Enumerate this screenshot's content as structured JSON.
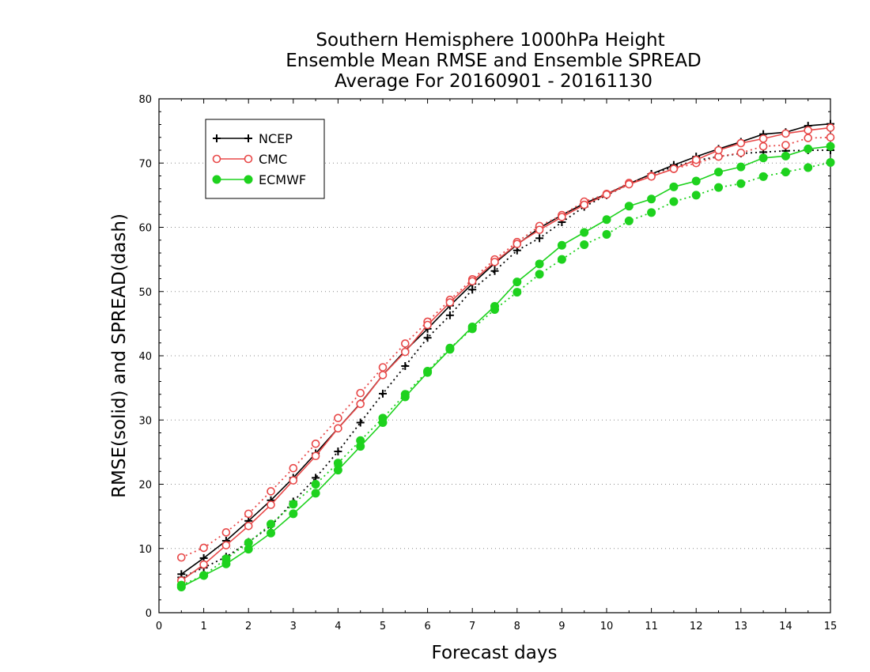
{
  "chart_data": {
    "type": "line",
    "title": [
      "Southern Hemisphere 1000hPa Height",
      "Ensemble Mean RMSE and Ensemble SPREAD",
      "Average For 20160901 - 20161130"
    ],
    "xlabel": "Forecast days",
    "ylabel": "RMSE(solid) and SPREAD(dash)",
    "xlim": [
      0,
      15
    ],
    "ylim": [
      0,
      80
    ],
    "xticks": [
      0,
      1,
      2,
      3,
      4,
      5,
      6,
      7,
      8,
      9,
      10,
      11,
      12,
      13,
      14,
      15
    ],
    "yticks": [
      0,
      10,
      20,
      30,
      40,
      50,
      60,
      70,
      80
    ],
    "grid": "horizontal dotted",
    "legend_position": "top-left",
    "x": [
      0.5,
      1,
      1.5,
      2,
      2.5,
      3,
      3.5,
      4,
      4.5,
      5,
      5.5,
      6,
      6.5,
      7,
      7.5,
      8,
      8.5,
      9,
      9.5,
      10,
      10.5,
      11,
      11.5,
      12,
      12.5,
      13,
      13.5,
      14,
      14.5,
      15
    ],
    "series": [
      {
        "name": "NCEP",
        "color": "#000000",
        "marker": "plus",
        "rmse": [
          6.0,
          8.5,
          11.2,
          14.3,
          17.5,
          21.0,
          24.8,
          28.7,
          32.6,
          37.0,
          40.8,
          44.2,
          47.8,
          51.2,
          54.4,
          57.3,
          59.9,
          61.9,
          63.7,
          65.2,
          66.8,
          68.3,
          69.7,
          71.0,
          72.2,
          73.3,
          74.5,
          74.8,
          75.8,
          76.1
        ],
        "spread": [
          5.5,
          7.0,
          8.7,
          11.0,
          13.5,
          17.3,
          21.0,
          25.1,
          29.6,
          34.1,
          38.4,
          42.8,
          46.3,
          50.3,
          53.2,
          56.4,
          58.3,
          60.8,
          63.2,
          65.0,
          66.7,
          68.3,
          69.4,
          70.4,
          71.0,
          71.5,
          71.7,
          71.9,
          72.0,
          72.0
        ]
      },
      {
        "name": "CMC",
        "color": "#e84848",
        "marker": "open-circle",
        "rmse": [
          5.0,
          7.5,
          10.5,
          13.5,
          16.8,
          20.6,
          24.4,
          28.7,
          32.5,
          37.0,
          40.6,
          44.8,
          48.3,
          51.6,
          54.6,
          57.4,
          59.6,
          61.6,
          63.5,
          65.1,
          66.7,
          67.9,
          69.1,
          70.5,
          72.0,
          73.1,
          73.8,
          74.6,
          75.1,
          75.5
        ],
        "spread": [
          8.6,
          10.1,
          12.5,
          15.4,
          18.9,
          22.5,
          26.3,
          30.3,
          34.2,
          38.2,
          41.9,
          45.3,
          48.7,
          51.9,
          55.0,
          57.7,
          60.2,
          61.9,
          64.0,
          65.2,
          66.9,
          68.0,
          69.1,
          70.0,
          71.0,
          71.6,
          72.6,
          72.8,
          73.9,
          74.0
        ]
      },
      {
        "name": "ECMWF",
        "color": "#1ed21e",
        "marker": "filled-circle",
        "rmse": [
          4.0,
          5.8,
          7.6,
          9.9,
          12.4,
          15.4,
          18.6,
          22.2,
          25.9,
          29.6,
          33.6,
          37.4,
          41.0,
          44.5,
          47.7,
          51.5,
          54.3,
          57.2,
          59.2,
          61.2,
          63.3,
          64.4,
          66.3,
          67.2,
          68.6,
          69.4,
          70.8,
          71.1,
          72.2,
          72.6
        ],
        "spread": [
          4.3,
          5.8,
          8.4,
          10.9,
          13.8,
          16.9,
          20.0,
          23.3,
          26.8,
          30.3,
          34.0,
          37.6,
          41.2,
          44.2,
          47.2,
          49.9,
          52.7,
          55.0,
          57.3,
          58.9,
          61.0,
          62.3,
          64.0,
          65.0,
          66.2,
          66.8,
          67.9,
          68.6,
          69.3,
          70.1
        ]
      }
    ]
  }
}
